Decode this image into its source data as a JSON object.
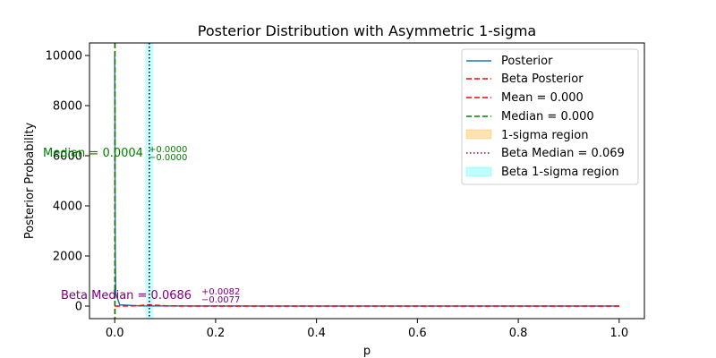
{
  "chart_data": {
    "type": "line",
    "title": "Posterior Distribution with Asymmetric 1-sigma",
    "xlabel": "p",
    "ylabel": "Posterior Probability",
    "xlim": [
      -0.05,
      1.05
    ],
    "ylim": [
      -500,
      10500
    ],
    "xticks": [
      0.0,
      0.2,
      0.4,
      0.6,
      0.8,
      1.0
    ],
    "xtick_labels": [
      "0.0",
      "0.2",
      "0.4",
      "0.6",
      "0.8",
      "1.0"
    ],
    "yticks": [
      0,
      2000,
      4000,
      6000,
      8000,
      10000
    ],
    "ytick_labels": [
      "0",
      "2000",
      "4000",
      "6000",
      "8000",
      "10000"
    ],
    "legend_position": "top-right",
    "colors": {
      "posterior": "#1f77b4",
      "beta_posterior": "#ff0000",
      "mean": "#ff0000",
      "median": "#008000",
      "sigma_region": "#ffa500",
      "beta_median": "#800080",
      "beta_sigma_region": "#00ffff"
    },
    "series": [
      {
        "name": "Posterior",
        "x": [
          0.0,
          0.0002,
          0.0004,
          0.0006,
          0.001,
          0.002,
          0.01,
          0.05,
          0.1,
          0.3,
          0.5,
          0.7,
          1.0
        ],
        "y": [
          10000,
          9000,
          8000,
          5000,
          2000,
          500,
          50,
          10,
          5,
          2,
          1,
          0,
          0
        ]
      },
      {
        "name": "Beta Posterior",
        "x": [
          0.0,
          0.03,
          0.05,
          0.06,
          0.0686,
          0.075,
          0.085,
          0.1,
          0.15,
          0.3,
          0.5,
          1.0
        ],
        "y": [
          0,
          5,
          20,
          40,
          48,
          44,
          30,
          12,
          2,
          0,
          0,
          0
        ]
      }
    ],
    "vlines": [
      {
        "name": "Mean = 0.000",
        "x": 0.0004
      },
      {
        "name": "Median = 0.000",
        "x": 0.0004
      },
      {
        "name": "Beta Median = 0.069",
        "x": 0.0686
      }
    ],
    "regions": [
      {
        "name": "1-sigma region",
        "x0": 0.0004,
        "x1": 0.0004
      },
      {
        "name": "Beta 1-sigma region",
        "x0": 0.0609,
        "x1": 0.0768
      }
    ],
    "legend": [
      "Posterior",
      "Beta Posterior",
      "Mean = 0.000",
      "Median = 0.000",
      "1-sigma region",
      "Beta Median = 0.069",
      "Beta 1-sigma region"
    ],
    "annotations": {
      "median_main": "Median = 0.0004",
      "median_plus": "+0.0000",
      "median_minus": "−0.0000",
      "beta_main": "Beta Median = 0.0686",
      "beta_plus": "+0.0082",
      "beta_minus": "−0.0077"
    }
  }
}
